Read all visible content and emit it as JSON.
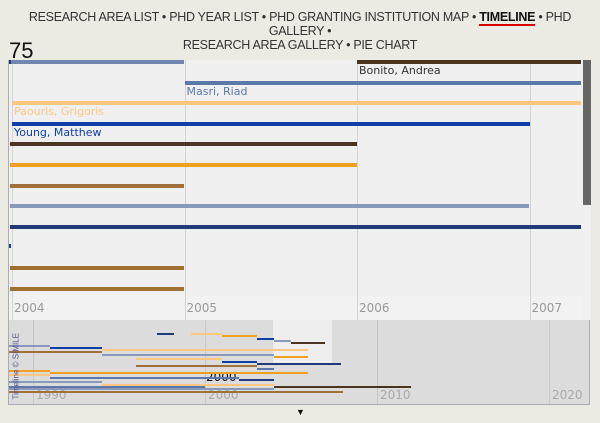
{
  "nav": {
    "items": [
      "RESEARCH AREA LIST",
      "PHD YEAR LIST",
      "PHD GRANTING INSTITUTION MAP",
      "TIMELINE",
      "PHD GALLERY",
      "RESEARCH AREA GALLERY",
      "PIE CHART"
    ],
    "active": "TIMELINE"
  },
  "count": "75",
  "main": {
    "years": [
      "2004",
      "2005",
      "2006",
      "2007"
    ],
    "events": [
      {
        "start": 2003.99,
        "end": 2005,
        "row": 0,
        "color": "#7088b0"
      },
      {
        "start": 2006,
        "end": 2007.3,
        "row": 0,
        "color": "#4a3520",
        "label": "Bonito, Andrea"
      },
      {
        "start": 2005,
        "end": 2007.3,
        "row": 1,
        "color": "#5a78aa",
        "label": "Masri, Riad"
      },
      {
        "start": 2004,
        "end": 2007.3,
        "row": 2,
        "color": "#ffc680",
        "label": "Paouris, Grigoris"
      },
      {
        "start": 2004,
        "end": 2007,
        "row": 3,
        "color": "#0d3fa6",
        "label": "Young, Matthew"
      },
      {
        "start": 2003.99,
        "end": 2006,
        "row": 4,
        "color": "#4a3520"
      },
      {
        "start": 2003.99,
        "end": 2006,
        "row": 5,
        "color": "#f0a020"
      },
      {
        "start": 2003.99,
        "end": 2005,
        "row": 6,
        "color": "#a0703a"
      },
      {
        "start": 2003.99,
        "end": 2007,
        "row": 7,
        "color": "#8899bb"
      },
      {
        "start": 2003.99,
        "end": 2007.3,
        "row": 8,
        "color": "#203a7a"
      },
      {
        "start": 2003.99,
        "end": 2005,
        "row": 10,
        "color": "#a07030"
      },
      {
        "start": 2003.99,
        "end": 2005,
        "row": 11,
        "color": "#a07030"
      }
    ],
    "label_colors": {
      "Bonito, Andrea": "#333",
      "Masri, Riad": "#5a78aa",
      "Paouris, Grigoris": "#ffc680",
      "Young, Matthew": "#0d3fa6"
    }
  },
  "overview": {
    "years": [
      "1990",
      "2000",
      "2010",
      "2020"
    ],
    "focus_label": "2000",
    "credit": "Timeline © SIMILE",
    "events": [
      {
        "start": 1997.2,
        "end": 1998.2,
        "color": "#203a7a"
      },
      {
        "start": 1999.2,
        "end": 2001,
        "color": "#ffc680"
      },
      {
        "start": 2001,
        "end": 2003,
        "color": "#f0a020"
      },
      {
        "start": 2003,
        "end": 2004,
        "color": "#0d3fa6"
      },
      {
        "start": 2004,
        "end": 2005,
        "color": "#8899bb"
      },
      {
        "start": 2005,
        "end": 2007,
        "color": "#4a3520"
      },
      {
        "start": 1988,
        "end": 1991,
        "color": "#8899bb"
      },
      {
        "start": 1991,
        "end": 1994,
        "color": "#0d3fa6"
      },
      {
        "start": 1994,
        "end": 2006,
        "color": "#ffc680"
      },
      {
        "start": 1988,
        "end": 1994,
        "color": "#a0703a"
      },
      {
        "start": 1994,
        "end": 2004,
        "color": "#8899bb"
      },
      {
        "start": 2004,
        "end": 2006,
        "color": "#f0a020"
      },
      {
        "start": 1996,
        "end": 2001,
        "color": "#ffc680"
      },
      {
        "start": 2001,
        "end": 2003,
        "color": "#0d3fa6"
      },
      {
        "start": 2003,
        "end": 2007.9,
        "color": "#203a7a"
      },
      {
        "start": 1996,
        "end": 2003,
        "color": "#a0703a"
      },
      {
        "start": 2003,
        "end": 2004,
        "color": "#5a78aa"
      },
      {
        "start": 1988,
        "end": 1991,
        "color": "#f0a020"
      },
      {
        "start": 1991,
        "end": 2006,
        "color": "#f0a020"
      },
      {
        "start": 1988,
        "end": 1991,
        "color": "#ffc680"
      },
      {
        "start": 1991,
        "end": 2002,
        "color": "#5a78aa"
      },
      {
        "start": 2002,
        "end": 2004,
        "color": "#203a7a"
      },
      {
        "start": 1988,
        "end": 1994,
        "color": "#8899bb"
      },
      {
        "start": 1994,
        "end": 2004,
        "color": "#ffc680"
      },
      {
        "start": 1988,
        "end": 2000,
        "color": "#5a78aa"
      },
      {
        "start": 2004,
        "end": 2012,
        "color": "#4a3520"
      },
      {
        "start": 1988,
        "end": 2004,
        "color": "#8899bb"
      },
      {
        "start": 1988,
        "end": 2008,
        "color": "#a0703a"
      }
    ]
  }
}
